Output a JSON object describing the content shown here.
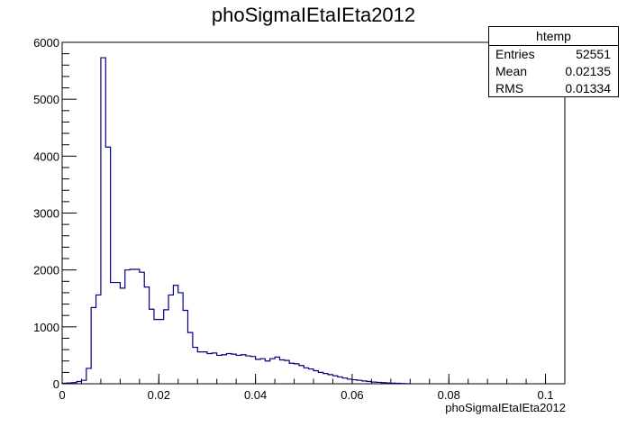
{
  "chart_data": {
    "type": "histogram",
    "title": "phoSigmaIEtaIEta2012",
    "xlabel": "phoSigmaIEtaIEta2012",
    "ylabel": "",
    "xlim": [
      0,
      0.104
    ],
    "ylim": [
      0,
      6000
    ],
    "x_ticks": [
      0,
      0.02,
      0.04,
      0.06,
      0.08,
      0.1
    ],
    "x_tick_labels": [
      "0",
      "0.02",
      "0.04",
      "0.06",
      "0.08",
      "0.1"
    ],
    "y_ticks": [
      0,
      1000,
      2000,
      3000,
      4000,
      5000,
      6000
    ],
    "y_tick_labels": [
      "0",
      "1000",
      "2000",
      "3000",
      "4000",
      "5000",
      "6000"
    ],
    "line_color": "#000080",
    "grid": false,
    "bins": {
      "low": 0,
      "width": 0.001,
      "values": [
        10,
        15,
        20,
        40,
        60,
        270,
        1340,
        1560,
        5730,
        4160,
        1780,
        1780,
        1680,
        2000,
        2010,
        2010,
        1960,
        1700,
        1310,
        1130,
        1130,
        1300,
        1560,
        1730,
        1600,
        1290,
        900,
        640,
        560,
        560,
        530,
        540,
        500,
        510,
        530,
        520,
        500,
        510,
        490,
        480,
        430,
        440,
        400,
        440,
        470,
        420,
        410,
        360,
        350,
        320,
        280,
        260,
        230,
        200,
        180,
        160,
        140,
        120,
        100,
        80,
        70,
        60,
        50,
        40,
        30,
        25,
        20,
        15,
        10,
        8,
        5,
        0
      ]
    }
  },
  "stats_box": {
    "title": "htemp",
    "entries_label": "Entries",
    "entries_value": "52551",
    "mean_label": "Mean",
    "mean_value": "0.02135",
    "rms_label": "RMS",
    "rms_value": "0.01334"
  }
}
